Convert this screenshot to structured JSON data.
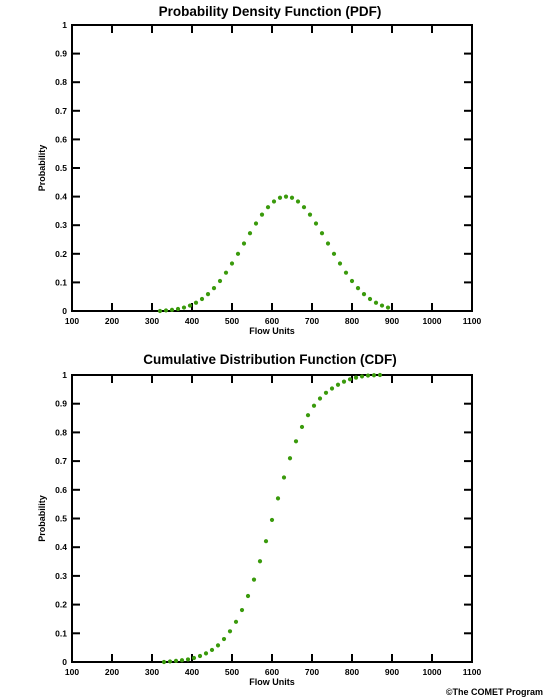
{
  "credit": "©The COMET Program",
  "chart_data": [
    {
      "type": "scatter",
      "title": "Probability Density Function (PDF)",
      "xlabel": "Flow Units",
      "ylabel": "Probability",
      "xlim": [
        100,
        1100
      ],
      "ylim": [
        0,
        1
      ],
      "xticks": [
        "100",
        "200",
        "300",
        "400",
        "500",
        "600",
        "700",
        "800",
        "900",
        "1000",
        "1100"
      ],
      "yticks": [
        "0",
        "0.1",
        "0.2",
        "0.3",
        "0.4",
        "0.5",
        "0.6",
        "0.7",
        "0.8",
        "0.9",
        "1"
      ],
      "series_color": "#3a9a0c",
      "series": [
        {
          "x": [
            320,
            335,
            350,
            365,
            380,
            395,
            410,
            425,
            440,
            455,
            470,
            485,
            500,
            515,
            530,
            545,
            560,
            575,
            590,
            605,
            620,
            635,
            650,
            665,
            680,
            695,
            710,
            725,
            740,
            755,
            770,
            785,
            800,
            815,
            830,
            845,
            860,
            875,
            890
          ],
          "y": [
            0.0,
            0.002,
            0.004,
            0.007,
            0.012,
            0.019,
            0.029,
            0.042,
            0.059,
            0.08,
            0.105,
            0.134,
            0.166,
            0.2,
            0.236,
            0.272,
            0.306,
            0.337,
            0.363,
            0.383,
            0.396,
            0.4,
            0.396,
            0.383,
            0.363,
            0.337,
            0.306,
            0.272,
            0.236,
            0.2,
            0.166,
            0.134,
            0.105,
            0.08,
            0.059,
            0.042,
            0.029,
            0.019,
            0.012
          ]
        }
      ]
    },
    {
      "type": "scatter",
      "title": "Cumulative Distribution Function (CDF)",
      "xlabel": "Flow Units",
      "ylabel": "Probability",
      "xlim": [
        100,
        1100
      ],
      "ylim": [
        0,
        1
      ],
      "xticks": [
        "100",
        "200",
        "300",
        "400",
        "500",
        "600",
        "700",
        "800",
        "900",
        "1000",
        "1100"
      ],
      "yticks": [
        "0",
        "0.1",
        "0.2",
        "0.3",
        "0.4",
        "0.5",
        "0.6",
        "0.7",
        "0.8",
        "0.9",
        "1"
      ],
      "series_color": "#3a9a0c",
      "series": [
        {
          "x": [
            330,
            345,
            360,
            375,
            390,
            405,
            420,
            435,
            450,
            465,
            480,
            495,
            510,
            525,
            540,
            555,
            570,
            585,
            600,
            615,
            630,
            645,
            660,
            675,
            690,
            705,
            720,
            735,
            750,
            765,
            780,
            795,
            810,
            825,
            840,
            855,
            870
          ],
          "y": [
            0.0,
            0.002,
            0.004,
            0.006,
            0.009,
            0.014,
            0.021,
            0.03,
            0.042,
            0.058,
            0.08,
            0.107,
            0.14,
            0.181,
            0.23,
            0.287,
            0.351,
            0.421,
            0.495,
            0.57,
            0.643,
            0.71,
            0.769,
            0.819,
            0.86,
            0.893,
            0.918,
            0.938,
            0.953,
            0.966,
            0.977,
            0.985,
            0.991,
            0.995,
            0.998,
            0.999,
            1.0
          ]
        }
      ]
    }
  ]
}
